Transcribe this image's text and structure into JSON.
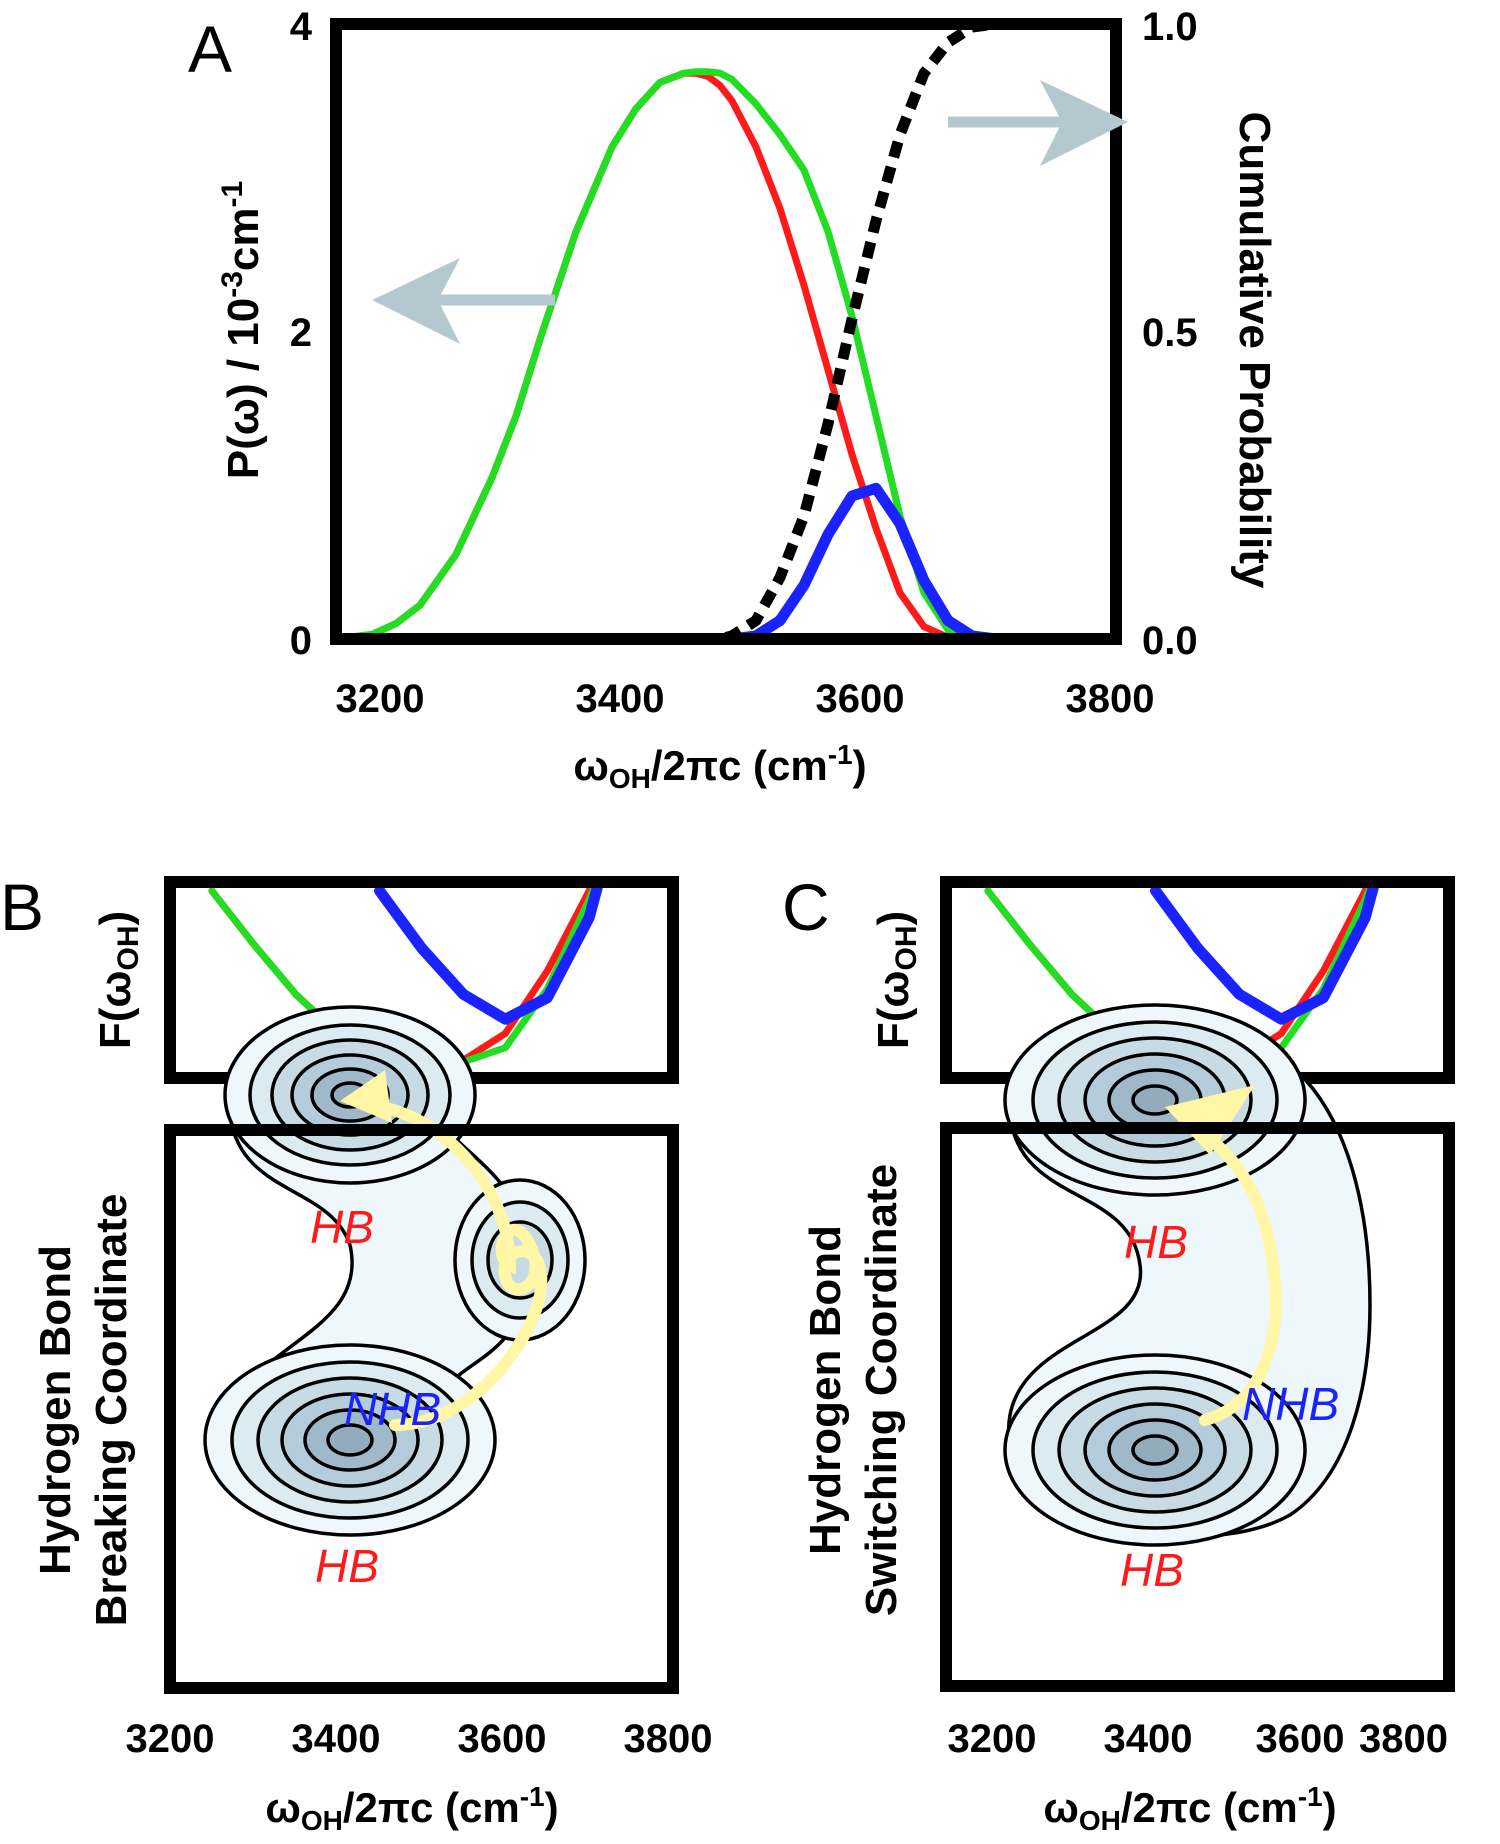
{
  "panels": {
    "a": "A",
    "b": "B",
    "c": "C"
  },
  "colors": {
    "red": "#ff1a1a",
    "green": "#22dd22",
    "blue": "#1a22ff",
    "arrow": "#b5c8d0",
    "path": "#fff6a6",
    "contour_fill_light": "#eef7fb",
    "contour_fill_dark": "#93acbc"
  },
  "chart_data": [
    {
      "id": "A",
      "type": "line",
      "xlabel": "ωOH/2πc (cm-1)",
      "ylabel_left": "P(ω) / 10-3cm-1",
      "ylabel_right": "Cumulative Probability",
      "xlim": [
        3150,
        3800
      ],
      "ylim_left": [
        0,
        4
      ],
      "ylim_right": [
        0,
        1
      ],
      "x_ticks": [
        "3200",
        "3400",
        "3600",
        "3800"
      ],
      "y_ticks_left": [
        "0",
        "2",
        "4"
      ],
      "y_ticks_right": [
        "0.0",
        "0.5",
        "1.0"
      ],
      "x": [
        3150,
        3180,
        3200,
        3220,
        3250,
        3280,
        3300,
        3320,
        3350,
        3380,
        3400,
        3420,
        3440,
        3450,
        3460,
        3470,
        3480,
        3500,
        3520,
        3540,
        3560,
        3580,
        3600,
        3620,
        3640,
        3660,
        3680,
        3700,
        3800
      ],
      "series": [
        {
          "color": "red",
          "axis": "left",
          "values": [
            0,
            0.03,
            0.1,
            0.22,
            0.55,
            1.05,
            1.45,
            1.95,
            2.65,
            3.2,
            3.45,
            3.62,
            3.68,
            3.68,
            3.66,
            3.6,
            3.5,
            3.2,
            2.8,
            2.3,
            1.75,
            1.2,
            0.72,
            0.3,
            0.08,
            0.01,
            0,
            0,
            0
          ]
        },
        {
          "color": "green",
          "axis": "left",
          "values": [
            0,
            0.03,
            0.1,
            0.22,
            0.55,
            1.05,
            1.45,
            1.95,
            2.65,
            3.2,
            3.45,
            3.62,
            3.68,
            3.69,
            3.69,
            3.68,
            3.64,
            3.48,
            3.28,
            3.05,
            2.65,
            2.1,
            1.45,
            0.8,
            0.3,
            0.06,
            0.01,
            0,
            0
          ]
        },
        {
          "color": "blue",
          "axis": "left",
          "values": [
            0,
            0,
            0,
            0,
            0,
            0,
            0,
            0,
            0,
            0,
            0,
            0,
            0,
            0,
            0,
            0,
            0,
            0.02,
            0.12,
            0.35,
            0.68,
            0.93,
            0.98,
            0.75,
            0.38,
            0.12,
            0.02,
            0,
            0
          ]
        },
        {
          "style": "dashed",
          "color": "black",
          "axis": "right",
          "values": [
            0,
            0,
            0,
            0,
            0,
            0,
            0,
            0,
            0,
            0,
            0,
            0,
            0,
            0,
            0,
            0,
            0.005,
            0.03,
            0.1,
            0.2,
            0.35,
            0.52,
            0.68,
            0.82,
            0.92,
            0.97,
            0.995,
            1.0,
            1.0
          ]
        }
      ]
    },
    {
      "id": "B",
      "type": "line",
      "ylabel": "F(ωOH)",
      "xlabel": "ωOH/2πc (cm-1)",
      "xlim": [
        3200,
        3800
      ],
      "x_ticks": [
        "3200",
        "3400",
        "3600",
        "3800"
      ],
      "x": [
        3250,
        3300,
        3350,
        3400,
        3450,
        3500,
        3550,
        3600,
        3650,
        3700,
        3720
      ],
      "series": [
        {
          "color": "red",
          "values": [
            1.0,
            0.7,
            0.42,
            0.2,
            0.06,
            0.0,
            0.05,
            0.2,
            0.55,
            1.0,
            1.2
          ]
        },
        {
          "color": "green",
          "values": [
            1.0,
            0.7,
            0.42,
            0.2,
            0.06,
            0.0,
            0.04,
            0.12,
            0.45,
            0.95,
            1.2
          ]
        },
        {
          "color": "blue",
          "values": [
            null,
            null,
            null,
            null,
            1.0,
            0.68,
            0.42,
            0.28,
            0.4,
            0.85,
            1.2
          ]
        }
      ]
    },
    {
      "id": "B-contour",
      "type": "contour",
      "ylabel": "Hydrogen Bond Breaking Coordinate",
      "annotations": [
        "HB",
        "NHB",
        "HB"
      ]
    },
    {
      "id": "C",
      "type": "line",
      "ylabel": "F(ωOH)",
      "xlabel": "ωOH/2πc (cm-1)",
      "xlim": [
        3200,
        3800
      ],
      "x_ticks": [
        "3200",
        "3400",
        "3600",
        "3800"
      ],
      "x": [
        3250,
        3300,
        3350,
        3400,
        3450,
        3500,
        3550,
        3600,
        3650,
        3700,
        3720
      ],
      "series": [
        {
          "color": "red",
          "values": [
            1.0,
            0.7,
            0.42,
            0.2,
            0.06,
            0.0,
            0.05,
            0.2,
            0.55,
            1.0,
            1.2
          ]
        },
        {
          "color": "green",
          "values": [
            1.0,
            0.7,
            0.42,
            0.2,
            0.06,
            0.0,
            0.04,
            0.12,
            0.45,
            0.95,
            1.2
          ]
        },
        {
          "color": "blue",
          "values": [
            null,
            null,
            null,
            null,
            1.0,
            0.68,
            0.42,
            0.28,
            0.4,
            0.85,
            1.2
          ]
        }
      ]
    },
    {
      "id": "C-contour",
      "type": "contour",
      "ylabel": "Hydrogen Bond Switching Coordinate",
      "annotations": [
        "HB",
        "NHB",
        "HB"
      ]
    }
  ]
}
